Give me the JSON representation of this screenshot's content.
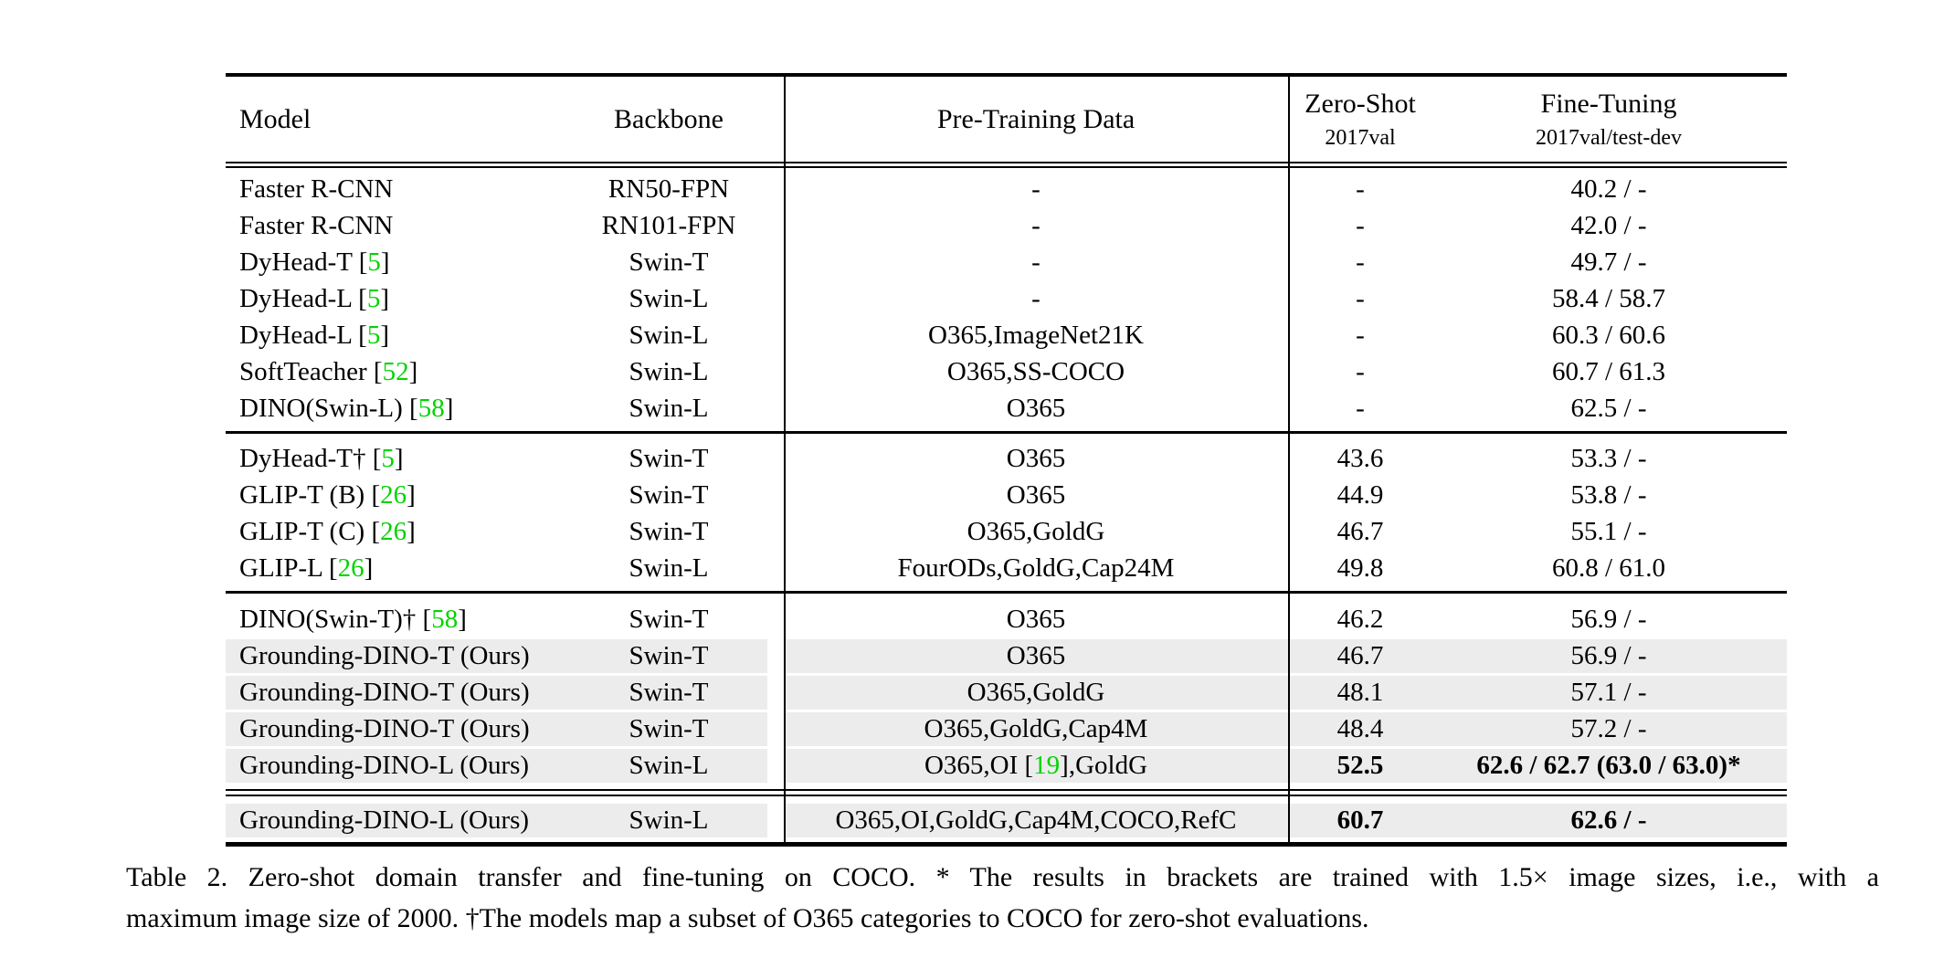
{
  "table": {
    "header": {
      "model": "Model",
      "backbone": "Backbone",
      "pretraining": "Pre-Training Data",
      "zero_shot": {
        "title": "Zero-Shot",
        "subtitle": "2017val"
      },
      "fine_tuning": {
        "title": "Fine-Tuning",
        "subtitle": "2017val/test-dev"
      }
    },
    "sections": [
      {
        "rows": [
          {
            "model": "Faster R-CNN",
            "backbone": "RN50-FPN",
            "pretrain": "-",
            "zero_shot": "-",
            "fine_tune": "40.2 / -",
            "highlight": false,
            "bold": false
          },
          {
            "model": "Faster R-CNN",
            "backbone": "RN101-FPN",
            "pretrain": "-",
            "zero_shot": "-",
            "fine_tune": "42.0 / -",
            "highlight": false,
            "bold": false
          },
          {
            "model": {
              "text": "DyHead-T",
              "cite": "5"
            },
            "backbone": "Swin-T",
            "pretrain": "-",
            "zero_shot": "-",
            "fine_tune": "49.7 / -",
            "highlight": false,
            "bold": false
          },
          {
            "model": {
              "text": "DyHead-L",
              "cite": "5"
            },
            "backbone": "Swin-L",
            "pretrain": "-",
            "zero_shot": "-",
            "fine_tune": "58.4 / 58.7",
            "highlight": false,
            "bold": false
          },
          {
            "model": {
              "text": "DyHead-L",
              "cite": "5"
            },
            "backbone": "Swin-L",
            "pretrain": "O365,ImageNet21K",
            "zero_shot": "-",
            "fine_tune": "60.3 / 60.6",
            "highlight": false,
            "bold": false
          },
          {
            "model": {
              "text": "SoftTeacher",
              "cite": "52"
            },
            "backbone": "Swin-L",
            "pretrain": "O365,SS-COCO",
            "zero_shot": "-",
            "fine_tune": "60.7 / 61.3",
            "highlight": false,
            "bold": false
          },
          {
            "model": {
              "text": "DINO(Swin-L)",
              "cite": "58"
            },
            "backbone": "Swin-L",
            "pretrain": "O365",
            "zero_shot": "-",
            "fine_tune": "62.5 / -",
            "highlight": false,
            "bold": false
          }
        ]
      },
      {
        "rows": [
          {
            "model": {
              "text": "DyHead-T†",
              "cite": "5"
            },
            "backbone": "Swin-T",
            "pretrain": "O365",
            "zero_shot": "43.6",
            "fine_tune": "53.3 / -",
            "highlight": false,
            "bold": false
          },
          {
            "model": {
              "text": "GLIP-T (B)",
              "cite": "26"
            },
            "backbone": "Swin-T",
            "pretrain": "O365",
            "zero_shot": "44.9",
            "fine_tune": "53.8 / -",
            "highlight": false,
            "bold": false
          },
          {
            "model": {
              "text": "GLIP-T (C)",
              "cite": "26"
            },
            "backbone": "Swin-T",
            "pretrain": "O365,GoldG",
            "zero_shot": "46.7",
            "fine_tune": "55.1 / -",
            "highlight": false,
            "bold": false
          },
          {
            "model": {
              "text": "GLIP-L",
              "cite": "26"
            },
            "backbone": "Swin-L",
            "pretrain": "FourODs,GoldG,Cap24M",
            "zero_shot": "49.8",
            "fine_tune": "60.8 / 61.0",
            "highlight": false,
            "bold": false
          }
        ]
      },
      {
        "rows": [
          {
            "model": {
              "text": "DINO(Swin-T)†",
              "cite": "58"
            },
            "backbone": "Swin-T",
            "pretrain": "O365",
            "zero_shot": "46.2",
            "fine_tune": "56.9 / -",
            "highlight": false,
            "bold": false
          },
          {
            "model": "Grounding-DINO-T (Ours)",
            "backbone": "Swin-T",
            "pretrain": "O365",
            "zero_shot": "46.7",
            "fine_tune": "56.9 / -",
            "highlight": true,
            "bold": false
          },
          {
            "model": "Grounding-DINO-T (Ours)",
            "backbone": "Swin-T",
            "pretrain": "O365,GoldG",
            "zero_shot": "48.1",
            "fine_tune": "57.1 / -",
            "highlight": true,
            "bold": false
          },
          {
            "model": "Grounding-DINO-T (Ours)",
            "backbone": "Swin-T",
            "pretrain": "O365,GoldG,Cap4M",
            "zero_shot": "48.4",
            "fine_tune": "57.2 / -",
            "highlight": true,
            "bold": false
          },
          {
            "model": "Grounding-DINO-L (Ours)",
            "backbone": "Swin-L",
            "pretrain": {
              "text": "O365,OI [19],GoldG",
              "cite": "19"
            },
            "zero_shot": "52.5",
            "fine_tune": "62.6 / 62.7 (63.0 / 63.0)*",
            "highlight": true,
            "bold": true
          }
        ]
      },
      {
        "rows": [
          {
            "model": "Grounding-DINO-L (Ours)",
            "backbone": "Swin-L",
            "pretrain": "O365,OI,GoldG,Cap4M,COCO,RefC",
            "zero_shot": "60.7",
            "fine_tune": "62.6 / -",
            "highlight": true,
            "bold": true
          }
        ]
      }
    ]
  },
  "caption": {
    "line1": "Table 2.  Zero-shot domain transfer and fine-tuning on COCO. * The results in brackets are trained with 1.5× image sizes, i.e., with a",
    "line2": "maximum image size of 2000. †The models map a subset of O365 categories to COCO for zero-shot evaluations."
  },
  "colors": {
    "citation_green": "#00D400",
    "row_highlight": "#ECECEC",
    "rule_black": "#000000"
  }
}
